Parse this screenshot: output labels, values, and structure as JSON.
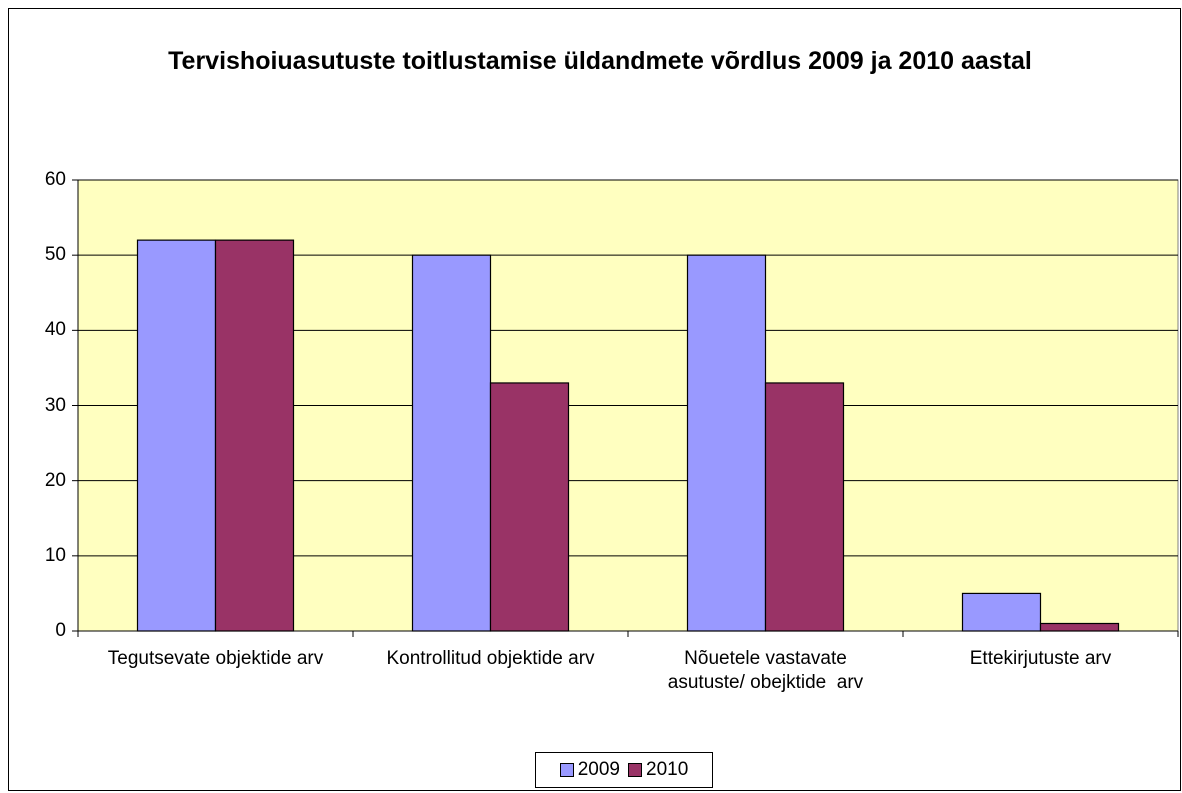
{
  "chart_data": {
    "type": "bar",
    "title": "Tervishoiuasutuste toitlustamise üldandmete võrdlus 2009 ja 2010 aastal",
    "categories": [
      "Tegutsevate objektide arv",
      "Kontrollitud objektide arv",
      "Nõuetele vastavate asutuste/ obejktide  arv",
      "Ettekirjutuste arv"
    ],
    "series": [
      {
        "name": "2009",
        "color": "#9999ff",
        "values": [
          52,
          50,
          50,
          5
        ]
      },
      {
        "name": "2010",
        "color": "#993366",
        "values": [
          52,
          33,
          33,
          1
        ]
      }
    ],
    "ylim": [
      0,
      60
    ],
    "yticks": [
      0,
      10,
      20,
      30,
      40,
      50,
      60
    ],
    "grid": true,
    "plot_background": "#ffffc0",
    "legend": "bottom"
  }
}
